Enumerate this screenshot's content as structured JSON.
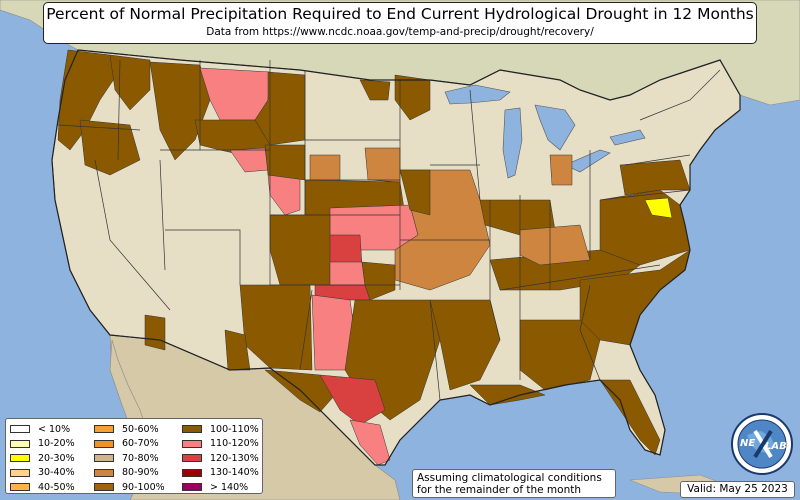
{
  "title": "Percent of Normal Precipitation Required to End Current Hydrological Drought in 12 Months",
  "subtitle": "Data from https://www.ncdc.noaa.gov/temp-and-precip/drought/recovery/",
  "note_line1": "Assuming climatological conditions",
  "note_line2": "for the remainder of the month",
  "valid": "Valid: May 25 2023",
  "logo_text_left": "NE",
  "logo_text_right": "LAB",
  "colors": {
    "ocean": "#8fb3df",
    "land": "#e6dfc6",
    "canada": "#d7d8b8",
    "mexico": "#d6c9a8",
    "lakes": "#8fb3df",
    "boundary": "#333333"
  },
  "legend": [
    {
      "label": "< 10%",
      "color": "#ffffff"
    },
    {
      "label": "10-20%",
      "color": "#ffffb2"
    },
    {
      "label": "20-30%",
      "color": "#ffff00"
    },
    {
      "label": "30-40%",
      "color": "#ffd28a"
    },
    {
      "label": "40-50%",
      "color": "#ffb347"
    },
    {
      "label": "50-60%",
      "color": "#f5a033"
    },
    {
      "label": "60-70%",
      "color": "#f0922a"
    },
    {
      "label": "70-80%",
      "color": "#d2b48c"
    },
    {
      "label": "80-90%",
      "color": "#cd853f"
    },
    {
      "label": "90-100%",
      "color": "#a0620a"
    },
    {
      "label": "100-110%",
      "color": "#8b5a00"
    },
    {
      "label": "110-120%",
      "color": "#f88080"
    },
    {
      "label": "120-130%",
      "color": "#d94040"
    },
    {
      "label": "130-140%",
      "color": "#a00000"
    },
    {
      "label": "> 140%",
      "color": "#990066"
    }
  ]
}
